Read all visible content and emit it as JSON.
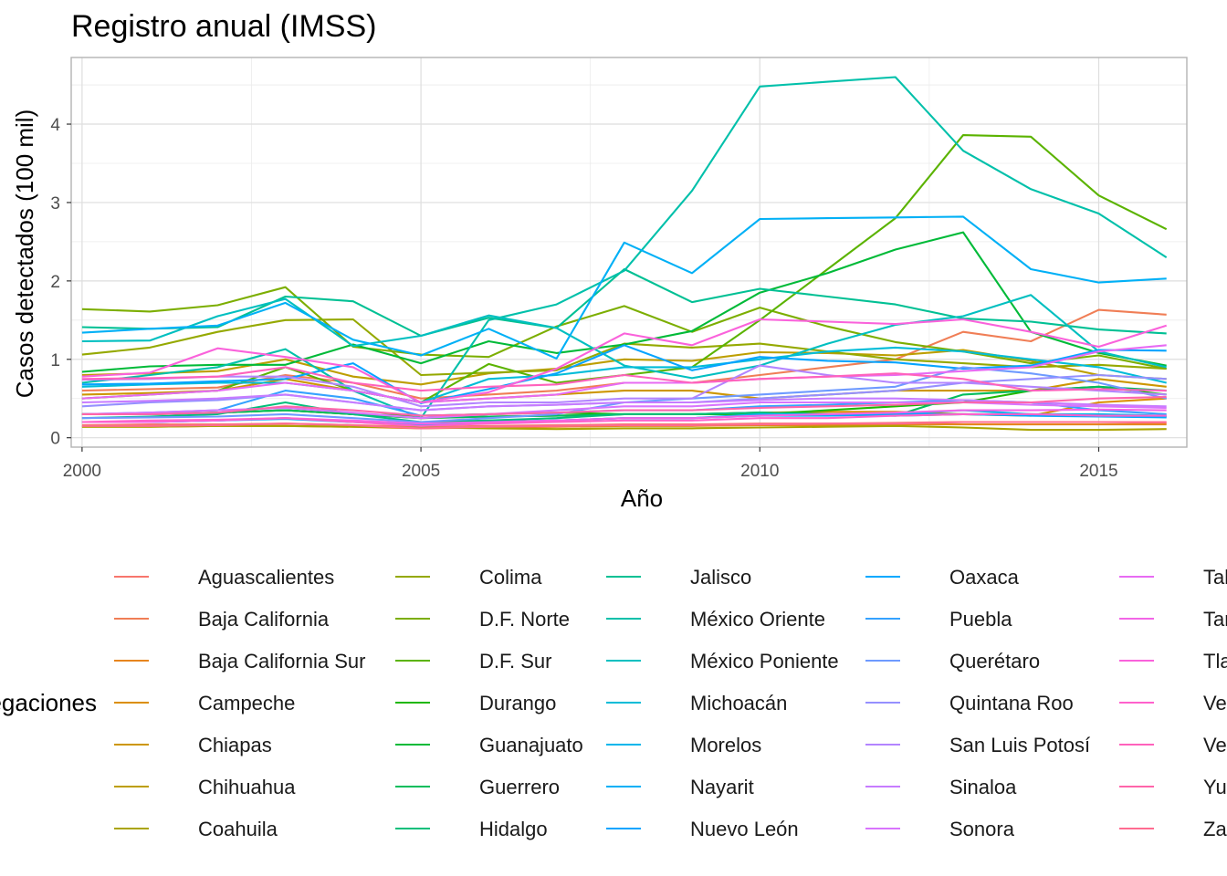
{
  "chart_data": {
    "type": "line",
    "title": "Registro anual (IMSS)",
    "xlabel": "Año",
    "ylabel": "Casos detectados (100 mil)",
    "xlim": [
      1999.84,
      2016.3
    ],
    "ylim": [
      -0.12,
      4.85
    ],
    "x_ticks": [
      2000,
      2005,
      2010,
      2015
    ],
    "y_ticks": [
      0,
      1,
      2,
      3,
      4
    ],
    "grid": true,
    "legend_title": "Delegaciones",
    "legend_position": "bottom",
    "x": [
      2000,
      2001,
      2002,
      2003,
      2004,
      2005,
      2006,
      2007,
      2008,
      2009,
      2010,
      2011,
      2012,
      2013,
      2014,
      2015,
      2016
    ],
    "series": [
      {
        "name": "Aguascalientes",
        "color": "#F8766D",
        "values": [
          0.16,
          0.17,
          0.17,
          0.18,
          0.16,
          0.14,
          0.15,
          0.16,
          0.17,
          0.17,
          0.18,
          0.18,
          0.19,
          0.2,
          0.2,
          0.2,
          0.19
        ]
      },
      {
        "name": "Baja California",
        "color": "#F07E56",
        "values": [
          0.6,
          0.62,
          0.64,
          0.8,
          0.7,
          0.5,
          0.55,
          0.6,
          0.7,
          0.7,
          0.8,
          0.9,
          1.0,
          1.35,
          1.23,
          1.63,
          1.57
        ]
      },
      {
        "name": "Baja California Sur",
        "color": "#E7851E",
        "values": [
          0.14,
          0.14,
          0.15,
          0.15,
          0.14,
          0.12,
          0.13,
          0.14,
          0.15,
          0.15,
          0.16,
          0.16,
          0.17,
          0.17,
          0.17,
          0.17,
          0.17
        ]
      },
      {
        "name": "Campeche",
        "color": "#DB8E00",
        "values": [
          0.3,
          0.3,
          0.32,
          0.35,
          0.3,
          0.25,
          0.27,
          0.28,
          0.3,
          0.3,
          0.32,
          0.33,
          0.33,
          0.3,
          0.28,
          0.45,
          0.5
        ]
      },
      {
        "name": "Chiapas",
        "color": "#CD9600",
        "values": [
          0.55,
          0.57,
          0.6,
          0.75,
          0.6,
          0.45,
          0.5,
          0.55,
          0.6,
          0.6,
          0.5,
          0.55,
          0.6,
          0.6,
          0.6,
          0.75,
          0.65
        ]
      },
      {
        "name": "Chihuahua",
        "color": "#BD9E00",
        "values": [
          0.8,
          0.82,
          0.85,
          1.0,
          0.78,
          0.68,
          0.82,
          0.88,
          1.0,
          0.98,
          1.09,
          1.08,
          1.05,
          1.12,
          0.98,
          0.8,
          0.75
        ]
      },
      {
        "name": "Coahuila",
        "color": "#AAA400",
        "values": [
          0.14,
          0.14,
          0.15,
          0.15,
          0.14,
          0.13,
          0.12,
          0.11,
          0.12,
          0.12,
          0.13,
          0.14,
          0.15,
          0.13,
          0.1,
          0.1,
          0.11
        ]
      },
      {
        "name": "Colima",
        "color": "#95A900",
        "values": [
          1.06,
          1.15,
          1.35,
          1.5,
          1.51,
          0.8,
          0.83,
          0.86,
          1.2,
          1.15,
          1.2,
          1.1,
          1.0,
          0.95,
          0.9,
          0.93,
          0.88
        ]
      },
      {
        "name": "D.F. Norte",
        "color": "#7CAE00",
        "values": [
          1.64,
          1.61,
          1.69,
          1.92,
          1.16,
          1.06,
          1.03,
          1.42,
          1.68,
          1.35,
          1.66,
          1.42,
          1.22,
          1.1,
          0.95,
          1.05,
          0.88
        ]
      },
      {
        "name": "D.F. Sur",
        "color": "#5BB300",
        "values": [
          0.5,
          0.55,
          0.6,
          0.9,
          0.6,
          0.45,
          0.94,
          0.7,
          0.8,
          0.9,
          1.5,
          2.15,
          2.8,
          3.86,
          3.84,
          3.09,
          2.66
        ]
      },
      {
        "name": "Durango",
        "color": "#1FB700",
        "values": [
          0.3,
          0.3,
          0.32,
          0.35,
          0.3,
          0.28,
          0.3,
          0.32,
          0.3,
          0.3,
          0.3,
          0.35,
          0.4,
          0.45,
          0.6,
          0.65,
          0.55
        ]
      },
      {
        "name": "Guanajuato",
        "color": "#00BA38",
        "values": [
          0.84,
          0.91,
          0.93,
          0.93,
          1.19,
          0.95,
          1.23,
          1.08,
          1.19,
          1.36,
          1.85,
          2.1,
          2.4,
          2.62,
          1.35,
          1.08,
          0.92
        ]
      },
      {
        "name": "Guerrero",
        "color": "#00BD5C",
        "values": [
          0.3,
          0.3,
          0.32,
          0.35,
          0.3,
          0.25,
          0.27,
          0.28,
          0.3,
          0.3,
          0.32,
          0.3,
          0.28,
          0.55,
          0.6,
          0.65,
          0.6
        ]
      },
      {
        "name": "Hidalgo",
        "color": "#00BF7A",
        "values": [
          0.25,
          0.27,
          0.3,
          0.45,
          0.3,
          0.2,
          0.22,
          0.25,
          0.3,
          0.3,
          0.32,
          0.3,
          0.28,
          0.3,
          0.3,
          0.28,
          0.27
        ]
      },
      {
        "name": "Jalisco",
        "color": "#00C094",
        "values": [
          1.41,
          1.39,
          1.41,
          1.8,
          1.74,
          1.3,
          1.53,
          1.4,
          2.15,
          1.73,
          1.9,
          1.8,
          1.7,
          1.52,
          1.48,
          1.38,
          1.33
        ]
      },
      {
        "name": "México Oriente",
        "color": "#00C0AA",
        "values": [
          0.7,
          0.8,
          0.9,
          1.13,
          0.6,
          0.25,
          1.5,
          1.7,
          2.13,
          3.15,
          4.48,
          4.54,
          4.6,
          3.66,
          3.17,
          2.86,
          2.3
        ]
      },
      {
        "name": "México Poniente",
        "color": "#00BFC0",
        "values": [
          1.23,
          1.24,
          1.55,
          1.77,
          1.17,
          1.3,
          1.56,
          1.4,
          0.92,
          0.76,
          0.92,
          1.2,
          1.44,
          1.55,
          1.82,
          1.1,
          0.9
        ]
      },
      {
        "name": "Michoacán",
        "color": "#00BCD8",
        "values": [
          0.65,
          0.68,
          0.7,
          0.7,
          0.6,
          0.45,
          0.75,
          0.8,
          0.9,
          0.9,
          1.0,
          1.1,
          1.15,
          1.1,
          1.0,
          0.9,
          0.7
        ]
      },
      {
        "name": "Morelos",
        "color": "#00B6EB",
        "values": [
          0.2,
          0.2,
          0.22,
          0.25,
          0.2,
          0.17,
          0.2,
          0.22,
          0.25,
          0.25,
          0.3,
          0.3,
          0.3,
          0.35,
          0.3,
          0.3,
          0.28
        ]
      },
      {
        "name": "Nayarit",
        "color": "#00B0F6",
        "values": [
          1.34,
          1.39,
          1.43,
          1.72,
          1.25,
          1.05,
          1.39,
          1.01,
          2.49,
          2.1,
          2.79,
          2.8,
          2.81,
          2.82,
          2.15,
          1.98,
          2.03
        ]
      },
      {
        "name": "Nuevo León",
        "color": "#06A4FF",
        "values": [
          0.68,
          0.69,
          0.72,
          0.75,
          0.95,
          0.44,
          0.62,
          0.82,
          1.18,
          0.86,
          1.03,
          0.98,
          0.96,
          0.88,
          0.92,
          1.12,
          1.11
        ]
      },
      {
        "name": "Oaxaca",
        "color": "#00A9FF",
        "values": [
          0.2,
          0.2,
          0.22,
          0.24,
          0.2,
          0.16,
          0.2,
          0.22,
          0.25,
          0.25,
          0.28,
          0.28,
          0.3,
          0.3,
          0.28,
          0.27,
          0.26
        ]
      },
      {
        "name": "Puebla",
        "color": "#35A2FF",
        "values": [
          0.3,
          0.32,
          0.35,
          0.6,
          0.5,
          0.28,
          0.3,
          0.32,
          0.35,
          0.35,
          0.4,
          0.42,
          0.45,
          0.48,
          0.45,
          0.35,
          0.3
        ]
      },
      {
        "name": "Querétaro",
        "color": "#6E9AFF",
        "values": [
          0.25,
          0.26,
          0.27,
          0.3,
          0.25,
          0.2,
          0.25,
          0.3,
          0.45,
          0.5,
          0.55,
          0.6,
          0.65,
          0.9,
          0.82,
          0.7,
          0.5
        ]
      },
      {
        "name": "Quintana Roo",
        "color": "#9590FF",
        "values": [
          0.4,
          0.45,
          0.48,
          0.55,
          0.45,
          0.35,
          0.4,
          0.42,
          0.45,
          0.45,
          0.5,
          0.55,
          0.6,
          0.7,
          0.75,
          0.8,
          0.75
        ]
      },
      {
        "name": "San Luis Potosí",
        "color": "#B385FF",
        "values": [
          0.74,
          0.75,
          0.78,
          0.78,
          0.65,
          0.4,
          0.45,
          0.45,
          0.5,
          0.5,
          0.92,
          0.8,
          0.7,
          0.7,
          0.65,
          0.6,
          0.55
        ]
      },
      {
        "name": "Sinaloa",
        "color": "#C77CFF",
        "values": [
          0.45,
          0.47,
          0.5,
          0.55,
          0.45,
          0.35,
          0.4,
          0.42,
          0.45,
          0.45,
          0.48,
          0.5,
          0.5,
          0.48,
          0.45,
          0.42,
          0.4
        ]
      },
      {
        "name": "Sonora",
        "color": "#D874FD",
        "values": [
          0.3,
          0.32,
          0.35,
          0.38,
          0.32,
          0.25,
          0.3,
          0.35,
          0.4,
          0.4,
          0.45,
          0.45,
          0.45,
          0.45,
          0.42,
          0.4,
          0.38
        ]
      },
      {
        "name": "Tabasco",
        "color": "#E76BF3",
        "values": [
          0.5,
          0.55,
          0.6,
          0.7,
          0.6,
          0.45,
          0.5,
          0.55,
          0.7,
          0.7,
          0.75,
          0.78,
          0.8,
          0.85,
          0.9,
          1.1,
          1.18
        ]
      },
      {
        "name": "Tamaulipas",
        "color": "#F265E7",
        "values": [
          0.2,
          0.2,
          0.22,
          0.25,
          0.22,
          0.18,
          0.2,
          0.22,
          0.25,
          0.25,
          0.28,
          0.3,
          0.32,
          0.35,
          0.35,
          0.36,
          0.35
        ]
      },
      {
        "name": "Tlaxcala",
        "color": "#FA62DB",
        "values": [
          0.78,
          0.83,
          1.14,
          1.03,
          0.9,
          0.45,
          0.58,
          0.88,
          1.33,
          1.18,
          1.51,
          1.48,
          1.45,
          1.51,
          1.35,
          1.16,
          1.43
        ]
      },
      {
        "name": "Veracruz Norte",
        "color": "#FF61CC",
        "values": [
          0.2,
          0.22,
          0.23,
          0.25,
          0.2,
          0.15,
          0.18,
          0.2,
          0.22,
          0.22,
          0.25,
          0.25,
          0.28,
          0.3,
          0.3,
          0.28,
          0.28
        ]
      },
      {
        "name": "Veracruz Sur",
        "color": "#FF62BC",
        "values": [
          0.75,
          0.76,
          0.78,
          0.9,
          0.7,
          0.6,
          0.65,
          0.68,
          0.8,
          0.7,
          0.75,
          0.78,
          0.82,
          0.75,
          0.6,
          0.62,
          0.6
        ]
      },
      {
        "name": "Yucatán",
        "color": "#FF65AA",
        "values": [
          0.3,
          0.3,
          0.32,
          0.4,
          0.35,
          0.28,
          0.3,
          0.32,
          0.35,
          0.35,
          0.38,
          0.4,
          0.42,
          0.45,
          0.45,
          0.5,
          0.52
        ]
      },
      {
        "name": "Zacatecas",
        "color": "#FF6C91",
        "values": [
          0.15,
          0.15,
          0.16,
          0.18,
          0.16,
          0.12,
          0.14,
          0.15,
          0.16,
          0.16,
          0.17,
          0.18,
          0.18,
          0.2,
          0.2,
          0.2,
          0.2
        ]
      }
    ]
  }
}
